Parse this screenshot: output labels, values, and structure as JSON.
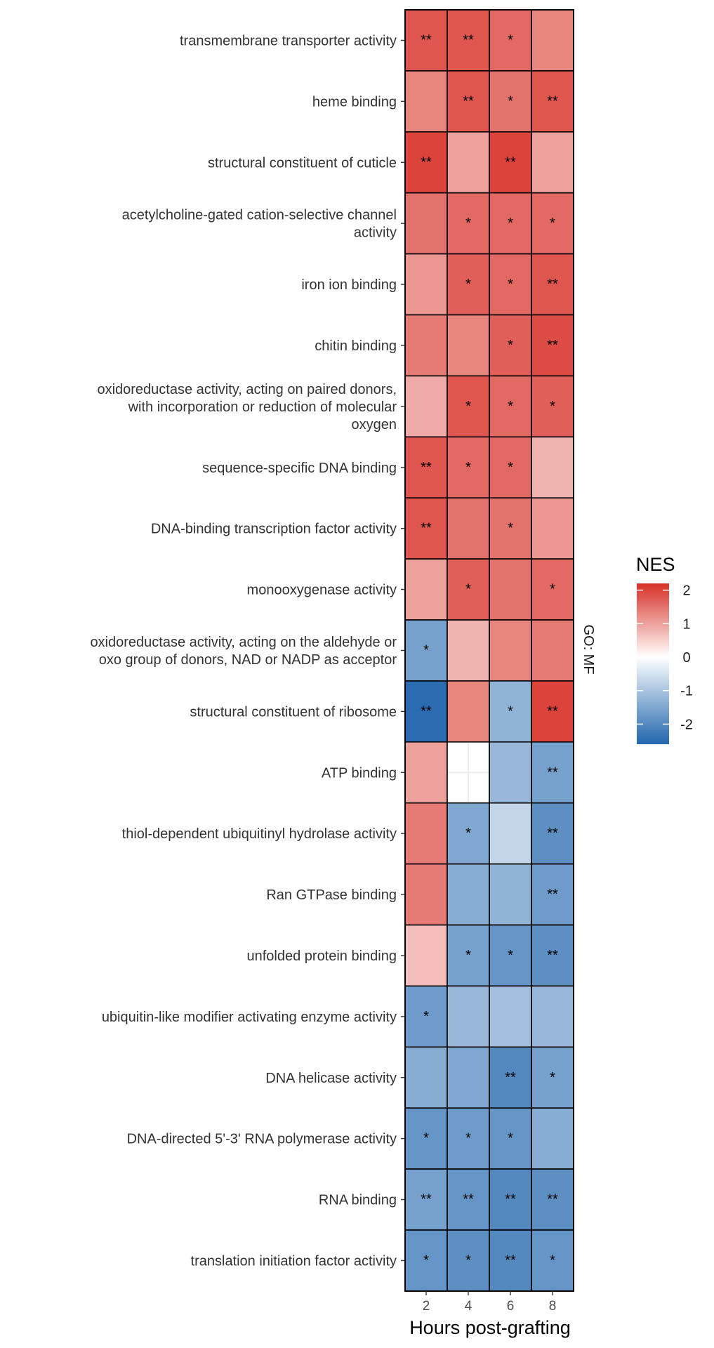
{
  "chart_data": {
    "type": "heatmap",
    "xlabel": "Hours post-grafting",
    "x": [
      "2",
      "4",
      "6",
      "8"
    ],
    "facet_label": "GO: MF",
    "legend": {
      "title": "NES",
      "position": "right",
      "ticks": [
        2,
        1,
        0,
        -1,
        -2
      ],
      "range": [
        -2.6,
        2.2
      ]
    },
    "colors": {
      "low": "#2166AC",
      "mid": "#FFFFFF",
      "high": "#D73027",
      "border": "#000000"
    },
    "rows": [
      {
        "term": [
          "transmembrane transporter activity"
        ],
        "values": [
          1.8,
          1.8,
          1.6,
          1.3
        ],
        "signif": [
          "**",
          "**",
          "*",
          ""
        ]
      },
      {
        "term": [
          "heme binding"
        ],
        "values": [
          1.3,
          1.8,
          1.5,
          1.8
        ],
        "signif": [
          "",
          "**",
          "*",
          "**"
        ]
      },
      {
        "term": [
          "structural constituent of cuticle"
        ],
        "values": [
          2.0,
          1.0,
          2.0,
          1.0
        ],
        "signif": [
          "**",
          "",
          "**",
          ""
        ]
      },
      {
        "term": [
          "acetylcholine-gated cation-selective channel",
          "activity"
        ],
        "values": [
          1.5,
          1.6,
          1.6,
          1.6
        ],
        "signif": [
          "",
          "*",
          "*",
          "*"
        ]
      },
      {
        "term": [
          "iron ion binding"
        ],
        "values": [
          1.1,
          1.7,
          1.6,
          1.8
        ],
        "signif": [
          "",
          "*",
          "*",
          "**"
        ]
      },
      {
        "term": [
          "chitin binding"
        ],
        "values": [
          1.4,
          1.3,
          1.7,
          1.9
        ],
        "signif": [
          "",
          "",
          "*",
          "**"
        ]
      },
      {
        "term": [
          "oxidoreductase activity, acting on paired donors,",
          "with incorporation or reduction of molecular",
          "oxygen"
        ],
        "values": [
          0.9,
          1.8,
          1.6,
          1.7
        ],
        "signif": [
          "",
          "*",
          "*",
          "*"
        ]
      },
      {
        "term": [
          "sequence-specific DNA binding"
        ],
        "values": [
          1.8,
          1.6,
          1.6,
          0.8
        ],
        "signif": [
          "**",
          "*",
          "*",
          ""
        ]
      },
      {
        "term": [
          "DNA-binding transcription factor activity"
        ],
        "values": [
          1.8,
          1.5,
          1.5,
          1.1
        ],
        "signif": [
          "**",
          "",
          "*",
          ""
        ]
      },
      {
        "term": [
          "monooxygenase activity"
        ],
        "values": [
          1.0,
          1.7,
          1.5,
          1.6
        ],
        "signif": [
          "",
          "*",
          "",
          "*"
        ]
      },
      {
        "term": [
          "oxidoreductase activity, acting on the aldehyde or",
          "oxo group of donors, NAD or NADP as acceptor"
        ],
        "values": [
          -1.6,
          0.8,
          1.3,
          1.4
        ],
        "signif": [
          "*",
          "",
          "",
          ""
        ]
      },
      {
        "term": [
          "structural constituent of ribosome"
        ],
        "values": [
          -2.5,
          1.3,
          -1.3,
          2.0
        ],
        "signif": [
          "**",
          "",
          "*",
          "**"
        ]
      },
      {
        "term": [
          "ATP binding"
        ],
        "values": [
          1.0,
          0.0,
          -1.2,
          -1.6
        ],
        "signif": [
          "",
          "",
          "",
          "**"
        ]
      },
      {
        "term": [
          "thiol-dependent ubiquitinyl hydrolase activity"
        ],
        "values": [
          1.4,
          -1.5,
          -0.7,
          -1.9
        ],
        "signif": [
          "",
          "*",
          "",
          "**"
        ]
      },
      {
        "term": [
          "Ran GTPase binding"
        ],
        "values": [
          1.4,
          -1.4,
          -1.3,
          -1.7
        ],
        "signif": [
          "",
          "",
          "",
          "**"
        ]
      },
      {
        "term": [
          "unfolded protein binding"
        ],
        "values": [
          0.7,
          -1.6,
          -1.8,
          -1.9
        ],
        "signif": [
          "",
          "*",
          "*",
          "**"
        ]
      },
      {
        "term": [
          "ubiquitin-like modifier activating enzyme activity"
        ],
        "values": [
          -1.7,
          -1.2,
          -1.1,
          -1.2
        ],
        "signif": [
          "*",
          "",
          "",
          ""
        ]
      },
      {
        "term": [
          "DNA helicase activity"
        ],
        "values": [
          -1.4,
          -1.5,
          -2.0,
          -1.6
        ],
        "signif": [
          "",
          "",
          "**",
          "*"
        ]
      },
      {
        "term": [
          "DNA-directed 5'-3' RNA polymerase activity"
        ],
        "values": [
          -1.8,
          -1.7,
          -1.8,
          -1.4
        ],
        "signif": [
          "*",
          "*",
          "*",
          ""
        ]
      },
      {
        "term": [
          "RNA binding"
        ],
        "values": [
          -1.6,
          -1.8,
          -2.0,
          -1.9
        ],
        "signif": [
          "**",
          "**",
          "**",
          "**"
        ]
      },
      {
        "term": [
          "translation initiation factor activity"
        ],
        "values": [
          -1.8,
          -1.9,
          -2.0,
          -1.8
        ],
        "signif": [
          "*",
          "*",
          "**",
          "*"
        ]
      }
    ]
  }
}
